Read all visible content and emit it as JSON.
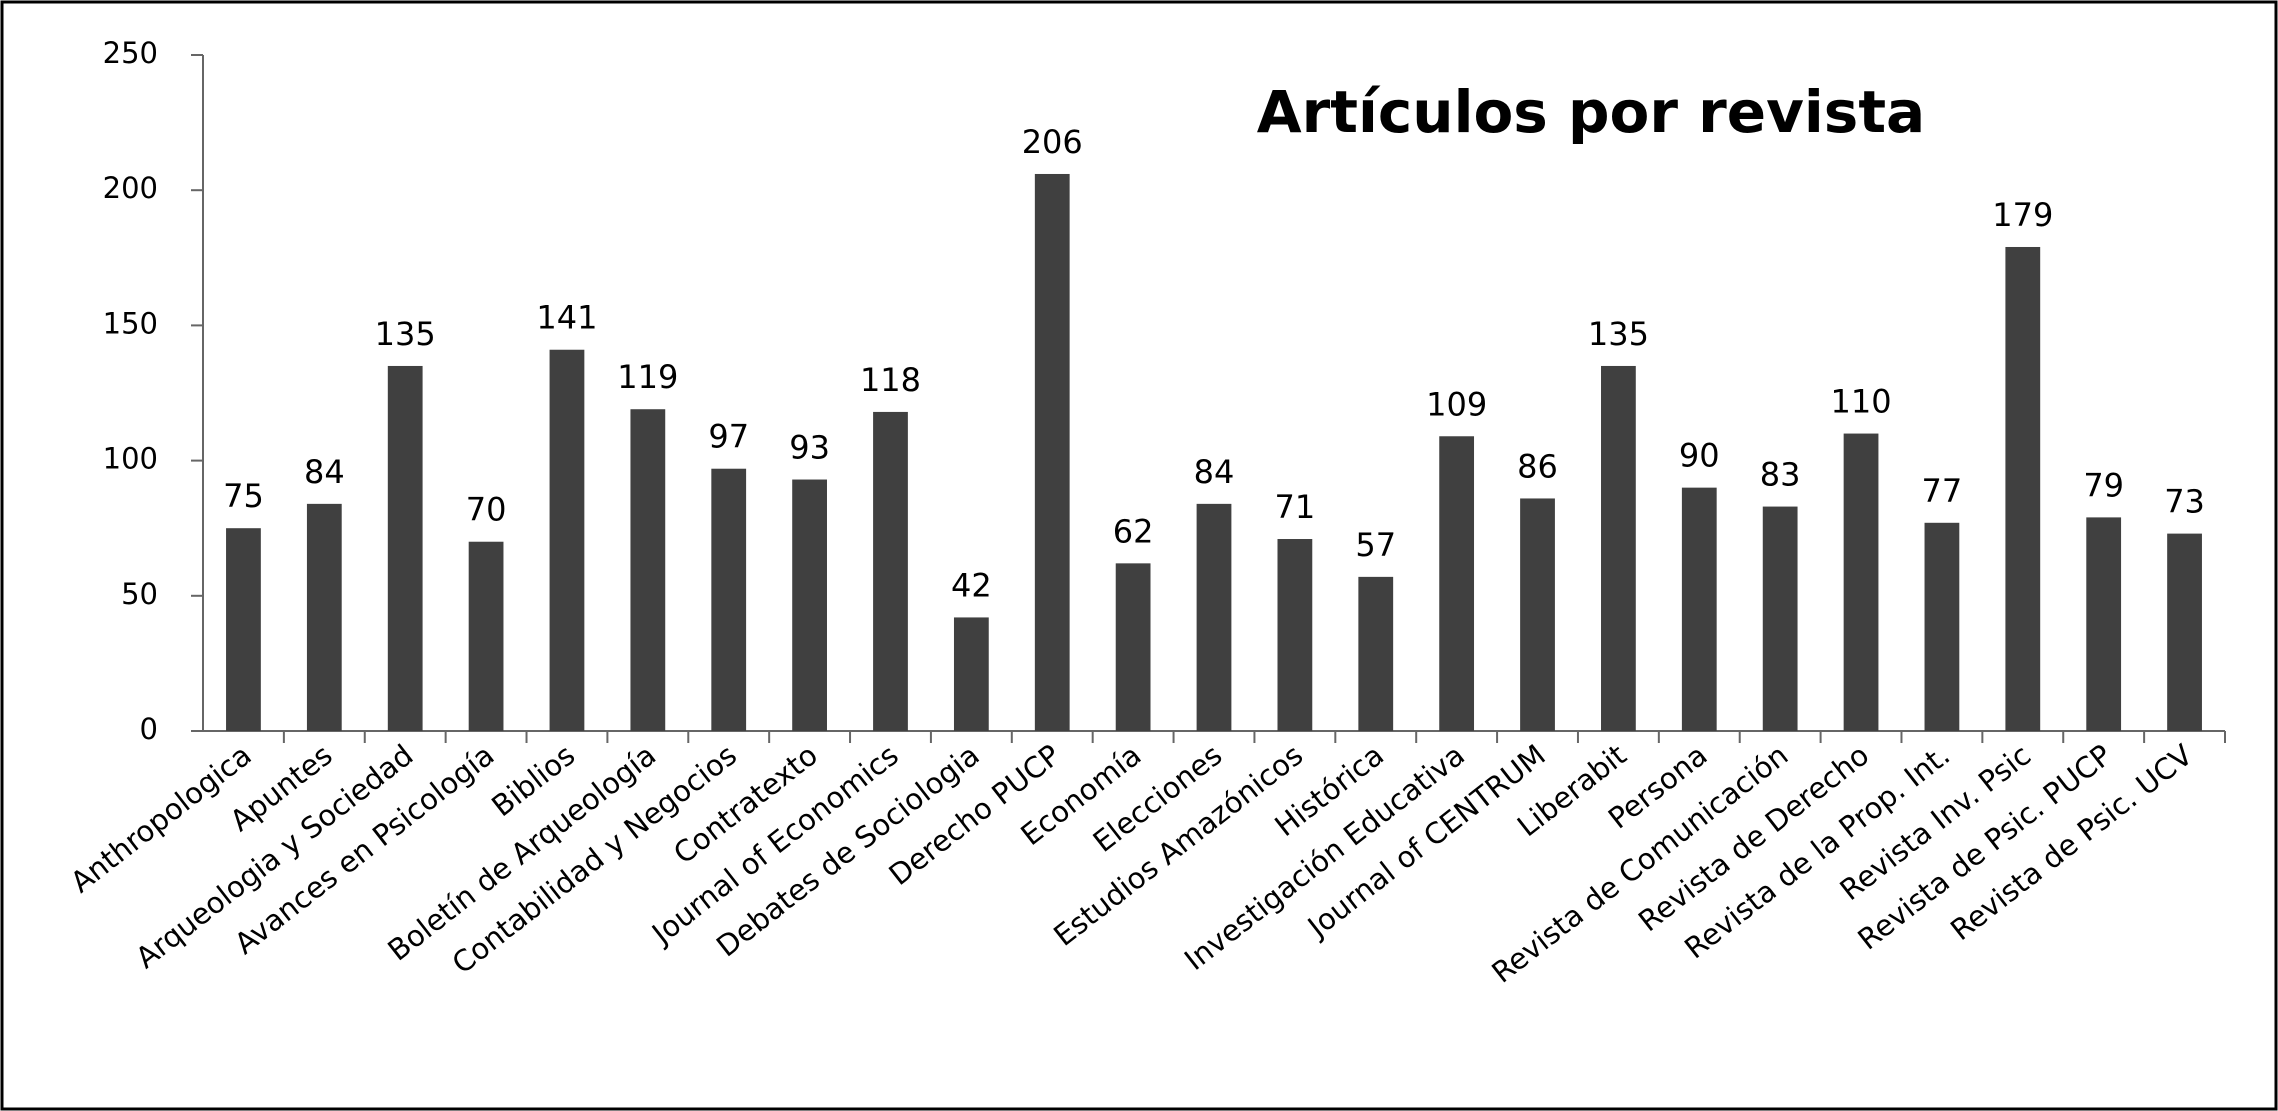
{
  "chart_data": {
    "type": "bar",
    "title": "Artículos por revista",
    "categories": [
      "Anthropologica",
      "Apuntes",
      "Arqueologia y Sociedad",
      "Avances en Psicología",
      "Biblios",
      "Boletín de Arqueología",
      "Contabilidad y Negocios",
      "Contratexto",
      "Journal of Economics",
      "Debates de Sociologia",
      "Derecho PUCP",
      "Economía",
      "Elecciones",
      "Estudios Amazónicos",
      "Histórica",
      "Investigación Educativa",
      "Journal of CENTRUM",
      "Liberabit",
      "Persona",
      "Revista de Comunicación",
      "Revista de Derecho",
      "Revista de la Prop. Int.",
      "Revista Inv. Psic",
      "Revista de Psic. PUCP",
      "Revista de Psic. UCV"
    ],
    "values": [
      75,
      84,
      135,
      70,
      141,
      119,
      97,
      93,
      118,
      42,
      206,
      62,
      84,
      71,
      57,
      109,
      86,
      135,
      90,
      83,
      110,
      77,
      179,
      79,
      73
    ],
    "color": "#404040",
    "ylim": [
      0,
      250
    ],
    "yticks": [
      0,
      50,
      100,
      150,
      200,
      250
    ],
    "grid": false
  }
}
